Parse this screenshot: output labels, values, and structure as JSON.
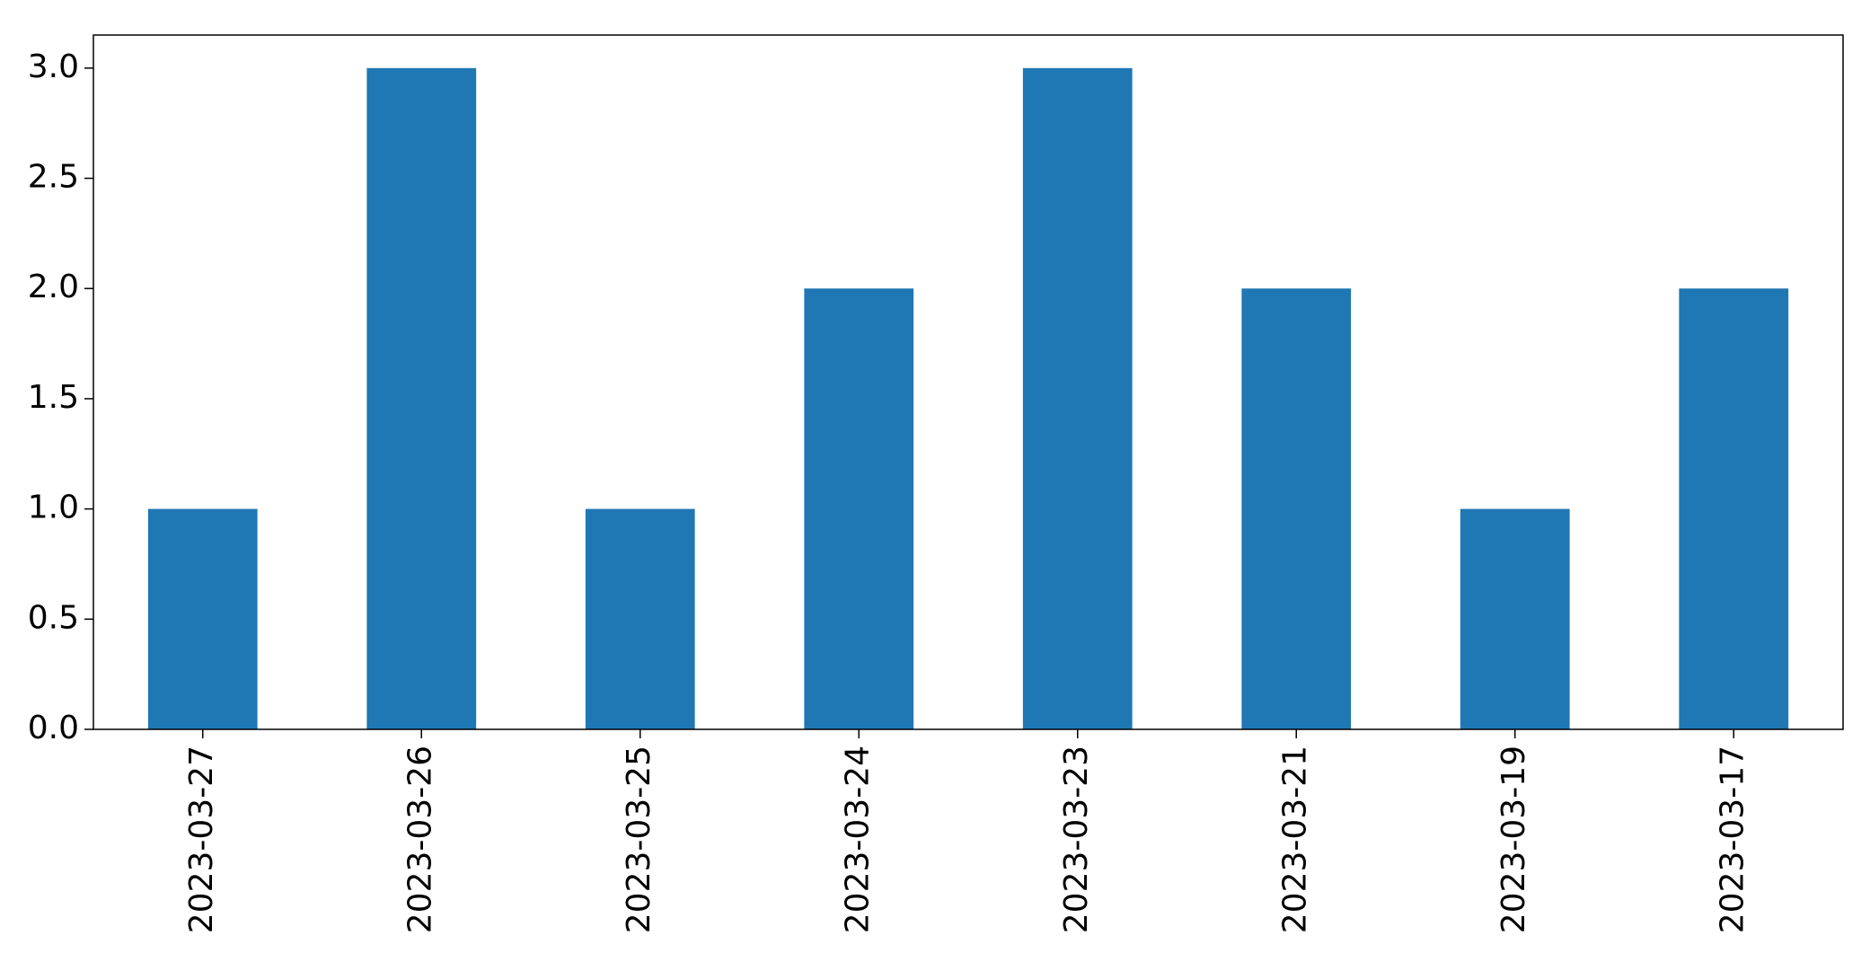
{
  "chart_data": {
    "type": "bar",
    "title": "",
    "xlabel": "",
    "ylabel": "",
    "categories": [
      "2023-03-27",
      "2023-03-26",
      "2023-03-25",
      "2023-03-24",
      "2023-03-23",
      "2023-03-21",
      "2023-03-19",
      "2023-03-17"
    ],
    "values": [
      1,
      3,
      1,
      2,
      3,
      2,
      1,
      2
    ],
    "ylim": [
      0,
      3.15
    ],
    "yticks": [
      "0.0",
      "0.5",
      "1.0",
      "1.5",
      "2.0",
      "2.5",
      "3.0"
    ],
    "grid": false,
    "legend": "none",
    "colors": {
      "bar": "#1f77b4"
    }
  }
}
